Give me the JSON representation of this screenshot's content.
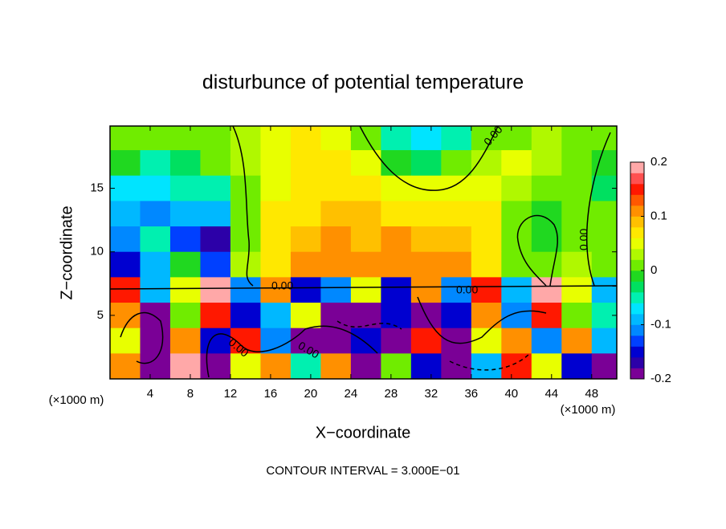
{
  "chart_data": {
    "type": "heatmap",
    "title": "disturbunce of potential temperature",
    "x_label": "X−coordinate",
    "y_label": "Z−coordinate",
    "x_unit": "(×1000 m)",
    "x_unit_right": "(×1000 m)",
    "footnote": "CONTOUR INTERVAL = 3.000E−01",
    "contour_labels": [
      "0.00",
      "0.00",
      "0.00",
      "0.00",
      "0.00",
      "0.00"
    ],
    "x": [
      1.5,
      4.5,
      7.5,
      10.5,
      13.5,
      16.5,
      19.5,
      22.5,
      25.5,
      28.5,
      31.5,
      34.5,
      37.5,
      40.5,
      43.5,
      46.5,
      49.5
    ],
    "y": [
      19,
      17,
      15,
      13,
      11,
      9,
      7,
      5,
      3,
      1
    ],
    "z": [
      [
        0.02,
        0.0,
        0.0,
        0.01,
        0.03,
        0.05,
        0.06,
        0.04,
        0.01,
        -0.05,
        -0.08,
        -0.04,
        0.0,
        0.02,
        0.03,
        0.02,
        0.0
      ],
      [
        -0.02,
        -0.06,
        -0.03,
        0.0,
        0.03,
        0.05,
        0.07,
        0.06,
        0.04,
        -0.01,
        -0.03,
        0.0,
        0.03,
        0.04,
        0.03,
        0.0,
        -0.02
      ],
      [
        -0.07,
        -0.08,
        -0.05,
        -0.04,
        0.01,
        0.05,
        0.07,
        0.07,
        0.07,
        0.05,
        0.04,
        0.05,
        0.05,
        0.03,
        0.0,
        0.0,
        -0.03
      ],
      [
        -0.09,
        -0.11,
        -0.1,
        -0.1,
        0.0,
        0.06,
        0.07,
        0.08,
        0.08,
        0.07,
        0.07,
        0.07,
        0.06,
        0.02,
        -0.02,
        0.0,
        0.0
      ],
      [
        -0.12,
        -0.06,
        -0.14,
        -0.18,
        0.0,
        0.06,
        0.08,
        0.1,
        0.09,
        0.1,
        0.09,
        0.08,
        0.06,
        0.0,
        -0.02,
        0.02,
        0.0
      ],
      [
        -0.16,
        -0.1,
        -0.02,
        -0.14,
        0.03,
        0.07,
        0.1,
        0.11,
        0.1,
        0.12,
        0.11,
        0.1,
        0.07,
        0.02,
        0.0,
        0.03,
        0.02
      ],
      [
        0.15,
        -0.1,
        0.05,
        0.18,
        -0.12,
        0.1,
        -0.15,
        -0.12,
        0.05,
        -0.15,
        0.12,
        -0.12,
        0.15,
        -0.1,
        0.2,
        0.05,
        -0.1
      ],
      [
        0.1,
        -0.2,
        0.0,
        0.15,
        -0.15,
        -0.1,
        0.05,
        -0.2,
        -0.2,
        -0.15,
        -0.2,
        -0.15,
        0.1,
        -0.12,
        0.15,
        0.0,
        -0.05
      ],
      [
        0.05,
        -0.2,
        0.1,
        -0.15,
        0.15,
        -0.12,
        -0.2,
        -0.2,
        -0.15,
        -0.2,
        0.15,
        -0.2,
        0.05,
        0.1,
        -0.12,
        0.1,
        -0.1
      ],
      [
        0.1,
        -0.2,
        0.2,
        -0.2,
        0.05,
        0.12,
        -0.05,
        0.1,
        -0.2,
        0.0,
        -0.15,
        -0.2,
        -0.1,
        0.15,
        0.05,
        -0.15,
        -0.2
      ]
    ],
    "xlim": [
      0,
      50.5
    ],
    "ylim": [
      0,
      19.9
    ],
    "xticks": [
      4,
      8,
      12,
      16,
      20,
      24,
      28,
      32,
      36,
      40,
      44,
      48
    ],
    "yticks": [
      5,
      10,
      15
    ],
    "zlim": [
      -0.2,
      0.2
    ],
    "zticks": [
      -0.2,
      -0.1,
      0,
      0.1,
      0.2
    ],
    "colorscale": [
      "#7a0096",
      "#2c00a8",
      "#0000d0",
      "#0040ff",
      "#0088ff",
      "#00b8ff",
      "#00e4ff",
      "#00f0b0",
      "#00e060",
      "#20d820",
      "#70ec00",
      "#b0f800",
      "#e8ff00",
      "#ffe800",
      "#ffc000",
      "#ff9000",
      "#ff5800",
      "#ff1800",
      "#ff5050",
      "#ffa8a8"
    ]
  }
}
